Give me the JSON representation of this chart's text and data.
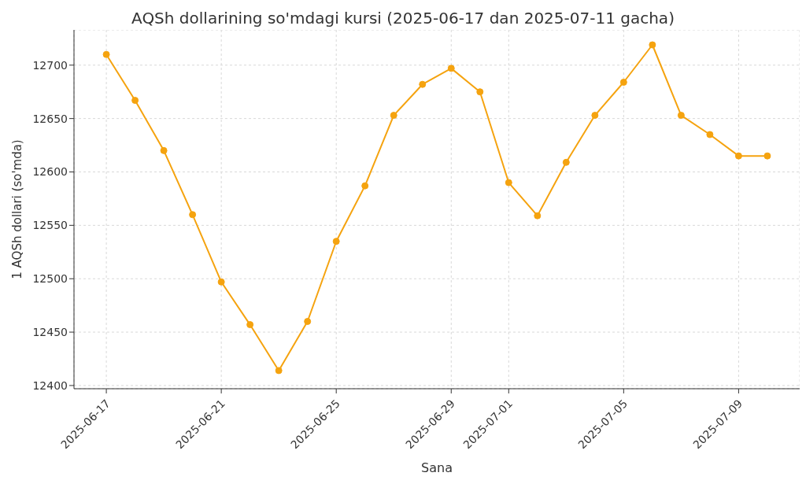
{
  "chart_data": {
    "type": "line",
    "title": "AQSh dollarining so'mdagi kursi (2025-06-17 dan 2025-07-11 gacha)",
    "xlabel": "Sana",
    "ylabel": "1 AQSh dollari (so'mda)",
    "x": [
      "2025-06-17",
      "2025-06-18",
      "2025-06-19",
      "2025-06-20",
      "2025-06-21",
      "2025-06-22",
      "2025-06-23",
      "2025-06-24",
      "2025-06-25",
      "2025-06-26",
      "2025-06-27",
      "2025-06-28",
      "2025-06-29",
      "2025-06-30",
      "2025-07-01",
      "2025-07-02",
      "2025-07-03",
      "2025-07-04",
      "2025-07-05",
      "2025-07-06",
      "2025-07-07",
      "2025-07-08",
      "2025-07-09",
      "2025-07-10"
    ],
    "series": [
      {
        "color": "#f5a30f",
        "values": [
          12710,
          12667,
          12620,
          12560,
          12497,
          12457,
          12414,
          12460,
          12535,
          12587,
          12653,
          12682,
          12697,
          12675,
          12590,
          12559,
          12609,
          12653,
          12684,
          12719,
          12653,
          12635,
          12615,
          12615
        ]
      }
    ],
    "xlim": [
      "2025-06-15T21:00",
      "2025-07-11T03:00"
    ],
    "xticks": [
      "2025-06-17",
      "2025-06-21",
      "2025-06-25",
      "2025-06-29",
      "2025-07-01",
      "2025-07-05",
      "2025-07-09"
    ],
    "ylim": [
      12397,
      12733
    ],
    "yticks": [
      12400,
      12450,
      12500,
      12550,
      12600,
      12650,
      12700
    ],
    "grid": true,
    "legend": false,
    "marker": "circle",
    "line_style": "solid"
  }
}
